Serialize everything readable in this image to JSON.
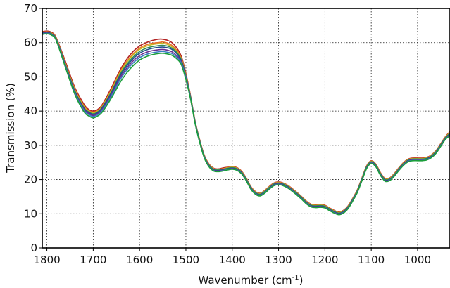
{
  "chart_data": {
    "type": "line",
    "title": "",
    "xlabel": "Wavenumber (cm",
    "xlabel_sup": "-1",
    "xlabel_suffix": ")",
    "ylabel": "Transmission (%)",
    "xlim": [
      1810,
      930
    ],
    "ylim": [
      0,
      70
    ],
    "x_reversed": true,
    "grid": true,
    "legend": "none",
    "x_ticks": [
      1800,
      1700,
      1600,
      1500,
      1400,
      1300,
      1200,
      1100,
      1000
    ],
    "y_ticks": [
      0,
      10,
      20,
      30,
      40,
      50,
      60,
      70
    ],
    "x_tick_labels": [
      "1800",
      "1700",
      "1600",
      "1500",
      "1400",
      "1300",
      "1200",
      "1100",
      "1000"
    ],
    "y_tick_labels": [
      "0",
      "10",
      "20",
      "30",
      "40",
      "50",
      "60",
      "70"
    ],
    "x": [
      1810,
      1800,
      1790,
      1780,
      1760,
      1740,
      1720,
      1710,
      1700,
      1690,
      1680,
      1660,
      1640,
      1620,
      1600,
      1580,
      1560,
      1550,
      1540,
      1530,
      1520,
      1510,
      1500,
      1490,
      1480,
      1470,
      1460,
      1450,
      1440,
      1430,
      1420,
      1410,
      1400,
      1390,
      1380,
      1370,
      1360,
      1350,
      1340,
      1330,
      1320,
      1310,
      1300,
      1290,
      1280,
      1270,
      1260,
      1250,
      1240,
      1230,
      1220,
      1210,
      1200,
      1190,
      1180,
      1170,
      1160,
      1150,
      1140,
      1130,
      1120,
      1110,
      1100,
      1090,
      1080,
      1070,
      1060,
      1050,
      1040,
      1030,
      1020,
      1010,
      1000,
      990,
      980,
      970,
      960,
      950,
      940,
      930
    ],
    "series": [
      {
        "color": "#b22222",
        "values": [
          63.2,
          63.4,
          63.0,
          61.5,
          54.5,
          47.0,
          42.0,
          40.5,
          40.0,
          40.5,
          42.0,
          47.0,
          52.5,
          56.5,
          59.0,
          60.3,
          61.0,
          61.0,
          60.7,
          60.0,
          58.5,
          56.0,
          51.0,
          44.5,
          37.0,
          31.5,
          27.0,
          24.5,
          23.3,
          23.1,
          23.4,
          23.6,
          23.8,
          23.5,
          22.5,
          20.5,
          18.0,
          16.5,
          16.0,
          16.8,
          18.0,
          19.0,
          19.3,
          19.0,
          18.3,
          17.3,
          16.2,
          15.0,
          13.7,
          12.8,
          12.6,
          12.7,
          12.5,
          11.7,
          11.0,
          10.5,
          11.0,
          12.3,
          14.5,
          17.0,
          20.5,
          24.0,
          25.5,
          24.5,
          22.0,
          20.3,
          20.5,
          21.8,
          23.5,
          25.0,
          26.0,
          26.3,
          26.3,
          26.3,
          26.5,
          27.2,
          28.5,
          30.5,
          32.5,
          34.0
        ]
      },
      {
        "color": "#e8702a",
        "values": [
          63.0,
          63.2,
          62.8,
          61.3,
          54.0,
          46.5,
          41.5,
          40.2,
          39.7,
          40.2,
          41.6,
          46.5,
          52.0,
          55.8,
          58.4,
          59.6,
          60.0,
          60.2,
          59.9,
          59.2,
          57.8,
          55.5,
          50.6,
          44.3,
          36.9,
          31.4,
          26.9,
          24.4,
          23.2,
          23.0,
          23.2,
          23.5,
          23.7,
          23.4,
          22.4,
          20.4,
          17.9,
          16.4,
          15.9,
          16.7,
          17.9,
          18.9,
          19.2,
          18.9,
          18.2,
          17.2,
          16.1,
          14.9,
          13.6,
          12.7,
          12.5,
          12.6,
          12.4,
          11.6,
          10.9,
          10.4,
          10.9,
          12.2,
          14.4,
          16.9,
          20.4,
          23.9,
          25.4,
          24.4,
          21.9,
          20.2,
          20.4,
          21.7,
          23.4,
          24.9,
          25.9,
          26.2,
          26.2,
          26.2,
          26.4,
          27.1,
          28.4,
          30.4,
          32.4,
          33.8
        ]
      },
      {
        "color": "#c8b820",
        "values": [
          62.9,
          63.1,
          62.7,
          61.2,
          53.8,
          46.3,
          41.3,
          40.0,
          39.5,
          40.0,
          41.4,
          46.2,
          51.7,
          55.5,
          58.0,
          59.2,
          59.7,
          59.8,
          59.5,
          58.8,
          57.5,
          55.2,
          50.4,
          44.2,
          36.8,
          31.3,
          26.8,
          24.3,
          23.1,
          22.9,
          23.1,
          23.4,
          23.6,
          23.3,
          22.3,
          20.3,
          17.8,
          16.3,
          15.8,
          16.6,
          17.8,
          18.8,
          19.1,
          18.8,
          18.1,
          17.1,
          16.0,
          14.8,
          13.5,
          12.6,
          12.4,
          12.5,
          12.3,
          11.5,
          10.8,
          10.3,
          10.8,
          12.1,
          14.3,
          16.8,
          20.3,
          23.8,
          25.3,
          24.3,
          21.8,
          20.1,
          20.3,
          21.6,
          23.3,
          24.8,
          25.8,
          26.1,
          26.1,
          26.1,
          26.3,
          27.0,
          28.3,
          30.3,
          32.3,
          33.7
        ]
      },
      {
        "color": "#2e8b57",
        "values": [
          62.8,
          63.0,
          62.6,
          61.1,
          53.6,
          46.0,
          41.0,
          39.8,
          39.2,
          39.8,
          41.2,
          45.8,
          51.2,
          54.9,
          57.4,
          58.6,
          59.1,
          59.2,
          59.0,
          58.4,
          57.2,
          55.0,
          50.2,
          44.1,
          36.7,
          31.2,
          26.7,
          24.2,
          23.0,
          22.8,
          23.0,
          23.3,
          23.5,
          23.2,
          22.2,
          20.2,
          17.7,
          16.2,
          15.7,
          16.5,
          17.7,
          18.7,
          19.0,
          18.7,
          18.0,
          17.0,
          15.9,
          14.7,
          13.4,
          12.5,
          12.3,
          12.4,
          12.2,
          11.4,
          10.7,
          10.2,
          10.7,
          12.0,
          14.2,
          16.7,
          20.2,
          23.7,
          25.2,
          24.2,
          21.7,
          20.0,
          20.2,
          21.5,
          23.2,
          24.7,
          25.7,
          26.0,
          26.0,
          26.0,
          26.2,
          26.9,
          28.2,
          30.2,
          32.2,
          33.5
        ]
      },
      {
        "color": "#1f4e8c",
        "values": [
          62.7,
          62.9,
          62.5,
          61.0,
          53.4,
          45.8,
          40.8,
          39.6,
          39.0,
          39.6,
          41.0,
          45.5,
          50.8,
          54.4,
          56.9,
          58.1,
          58.6,
          58.7,
          58.5,
          58.0,
          56.8,
          54.7,
          50.0,
          44.0,
          36.6,
          31.0,
          26.5,
          24.0,
          22.8,
          22.6,
          22.8,
          23.1,
          23.3,
          23.0,
          22.0,
          20.0,
          17.5,
          16.0,
          15.5,
          16.3,
          17.5,
          18.5,
          18.8,
          18.5,
          17.8,
          16.8,
          15.7,
          14.5,
          13.2,
          12.3,
          12.1,
          12.2,
          12.0,
          11.2,
          10.5,
          10.0,
          10.5,
          11.8,
          14.0,
          16.5,
          20.0,
          23.5,
          25.0,
          24.0,
          21.5,
          19.8,
          20.0,
          21.3,
          23.0,
          24.5,
          25.5,
          25.8,
          25.8,
          25.8,
          26.0,
          26.7,
          28.0,
          30.0,
          32.0,
          33.3
        ]
      },
      {
        "color": "#6a2c91",
        "values": [
          62.6,
          62.8,
          62.4,
          60.9,
          53.2,
          45.5,
          40.5,
          39.3,
          38.7,
          39.3,
          40.6,
          45.0,
          50.2,
          53.8,
          56.2,
          57.4,
          57.9,
          58.0,
          57.8,
          57.3,
          56.2,
          54.3,
          49.7,
          43.8,
          36.5,
          30.9,
          26.4,
          23.9,
          22.7,
          22.5,
          22.7,
          23.0,
          23.2,
          22.9,
          21.9,
          19.9,
          17.4,
          15.9,
          15.4,
          16.2,
          17.4,
          18.4,
          18.7,
          18.4,
          17.7,
          16.7,
          15.6,
          14.4,
          13.1,
          12.2,
          12.0,
          12.1,
          11.9,
          11.1,
          10.4,
          9.9,
          10.4,
          11.7,
          13.9,
          16.4,
          19.9,
          23.4,
          24.9,
          23.9,
          21.4,
          19.7,
          19.9,
          21.2,
          22.9,
          24.4,
          25.4,
          25.7,
          25.7,
          25.7,
          25.9,
          26.6,
          27.9,
          29.9,
          31.9,
          33.2
        ]
      },
      {
        "color": "#3a7fc1",
        "values": [
          62.5,
          62.7,
          62.3,
          60.8,
          53.0,
          45.3,
          40.2,
          39.0,
          38.4,
          39.0,
          40.3,
          44.6,
          49.6,
          53.2,
          55.6,
          56.8,
          57.3,
          57.4,
          57.2,
          56.8,
          55.8,
          54.0,
          49.5,
          43.7,
          36.4,
          30.8,
          26.3,
          23.8,
          22.6,
          22.4,
          22.6,
          22.9,
          23.1,
          22.8,
          21.8,
          19.8,
          17.3,
          15.8,
          15.3,
          16.1,
          17.3,
          18.3,
          18.6,
          18.3,
          17.6,
          16.6,
          15.5,
          14.3,
          13.0,
          12.1,
          11.9,
          12.0,
          11.8,
          11.0,
          10.3,
          9.8,
          10.3,
          11.6,
          13.8,
          16.3,
          19.8,
          23.3,
          24.8,
          23.8,
          21.3,
          19.6,
          19.8,
          21.1,
          22.8,
          24.3,
          25.3,
          25.6,
          25.6,
          25.6,
          25.8,
          26.5,
          27.8,
          29.8,
          31.8,
          33.0
        ]
      },
      {
        "color": "#1a9e3a",
        "values": [
          62.4,
          62.6,
          62.2,
          60.7,
          52.8,
          45.0,
          39.8,
          38.6,
          38.0,
          38.6,
          39.8,
          44.0,
          48.8,
          52.4,
          54.9,
          56.2,
          56.8,
          56.9,
          56.7,
          56.3,
          55.3,
          53.6,
          49.2,
          43.5,
          36.3,
          30.7,
          26.2,
          23.7,
          22.5,
          22.3,
          22.5,
          22.8,
          23.0,
          22.7,
          21.7,
          19.7,
          17.2,
          15.7,
          15.2,
          16.0,
          17.2,
          18.2,
          18.5,
          18.2,
          17.5,
          16.5,
          15.4,
          14.2,
          12.9,
          12.0,
          11.8,
          11.9,
          11.7,
          10.9,
          10.2,
          9.7,
          10.2,
          11.5,
          13.7,
          16.2,
          19.7,
          23.2,
          24.7,
          23.7,
          21.2,
          19.5,
          19.7,
          21.0,
          22.7,
          24.2,
          25.2,
          25.5,
          25.5,
          25.5,
          25.7,
          26.4,
          27.7,
          29.7,
          31.7,
          32.8
        ]
      }
    ]
  }
}
